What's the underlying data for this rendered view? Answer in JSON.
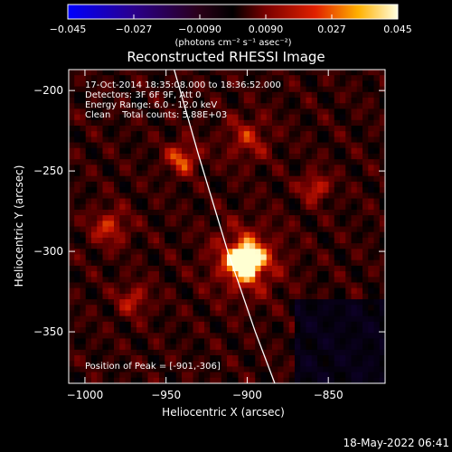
{
  "chart_data": {
    "type": "heatmap",
    "title": "Reconstructed RHESSI Image",
    "xlabel": "Heliocentric X (arcsec)",
    "ylabel": "Heliocentric Y (arcsec)",
    "xlim": [
      -1010,
      -815
    ],
    "ylim": [
      -382,
      -187
    ],
    "x_ticks": [
      -1000,
      -950,
      -900,
      -850
    ],
    "y_ticks": [
      -200,
      -250,
      -300,
      -350
    ],
    "colorbar": {
      "range": [
        -0.045,
        0.045
      ],
      "ticks": [
        -0.045,
        -0.027,
        -0.009,
        0.009,
        0.027,
        0.045
      ],
      "tick_labels": [
        "−0.045",
        "−0.027",
        "−0.0090",
        "0.0090",
        "0.027",
        "0.045"
      ],
      "unit_label": "(photons cm⁻² s⁻¹ asec⁻²)"
    },
    "annotations": {
      "time": "17-Oct-2014 18:35:08.000 to 18:36:52.000",
      "detectors": "Detectors: 3F 6F 9F, Att 0",
      "energy": "Energy Range: 6.0 - 12.0 keV",
      "clean": "Clean    Total counts: 5.88E+03",
      "peak": "Position of Peak = [-901,-306]"
    },
    "peak": {
      "x": -901,
      "y": -306
    },
    "sources": [
      {
        "x": -901,
        "y": -306,
        "intensity": 1.0,
        "sigma": 6
      },
      {
        "x": -901,
        "y": -306,
        "intensity": 0.6,
        "sigma": 14
      },
      {
        "x": -940,
        "y": -242,
        "intensity": 0.55,
        "sigma": 7
      },
      {
        "x": -858,
        "y": -260,
        "intensity": 0.5,
        "sigma": 6
      },
      {
        "x": -985,
        "y": -285,
        "intensity": 0.45,
        "sigma": 8
      },
      {
        "x": -970,
        "y": -330,
        "intensity": 0.4,
        "sigma": 7
      },
      {
        "x": -900,
        "y": -230,
        "intensity": 0.35,
        "sigma": 10
      }
    ],
    "limb": [
      {
        "x": -945,
        "y": -187
      },
      {
        "x": -930,
        "y": -240
      },
      {
        "x": -912,
        "y": -300
      },
      {
        "x": -895,
        "y": -350
      },
      {
        "x": -883,
        "y": -382
      }
    ],
    "colors": {
      "limb": "#ffffff",
      "axes": "#ffffff",
      "background": "#000000"
    }
  },
  "footer": {
    "timestamp": "18-May-2022 06:41"
  }
}
